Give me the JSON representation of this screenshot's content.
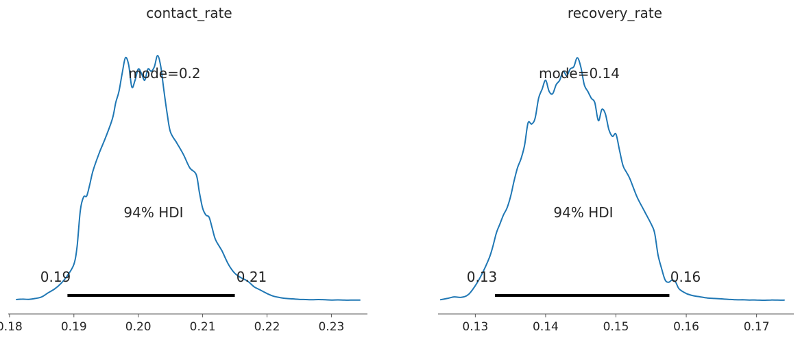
{
  "chart_data": [
    {
      "type": "line",
      "title": "contact_rate",
      "xlabel": "",
      "ylabel": "",
      "xlim": [
        0.1798,
        0.2356
      ],
      "xticks": [
        0.18,
        0.19,
        0.2,
        0.21,
        0.22,
        0.23
      ],
      "xtick_labels": [
        "0.18",
        "0.19",
        "0.20",
        "0.21",
        "0.22",
        "0.23"
      ],
      "line_color": "#1f77b4",
      "x": [
        0.181,
        0.182,
        0.183,
        0.184,
        0.185,
        0.186,
        0.187,
        0.188,
        0.189,
        0.19,
        0.1905,
        0.191,
        0.1915,
        0.192,
        0.1925,
        0.193,
        0.194,
        0.195,
        0.196,
        0.1965,
        0.197,
        0.1975,
        0.198,
        0.1985,
        0.199,
        0.1995,
        0.2,
        0.2005,
        0.201,
        0.2015,
        0.202,
        0.2025,
        0.203,
        0.2035,
        0.204,
        0.2045,
        0.205,
        0.206,
        0.207,
        0.208,
        0.209,
        0.2095,
        0.21,
        0.2105,
        0.211,
        0.2115,
        0.212,
        0.213,
        0.214,
        0.215,
        0.216,
        0.217,
        0.218,
        0.219,
        0.22,
        0.221,
        0.222,
        0.223,
        0.224,
        0.225,
        0.226,
        0.227,
        0.228,
        0.229,
        0.23,
        0.231,
        0.232,
        0.233,
        0.2345
      ],
      "values": [
        0.3,
        0.5,
        0.4,
        0.8,
        1.5,
        3.3,
        5.0,
        7.5,
        11.0,
        16.0,
        24.0,
        40.0,
        46.0,
        46.5,
        52.0,
        58.0,
        66.0,
        73.0,
        81.0,
        88.0,
        93.0,
        101.0,
        108.0,
        105.0,
        95.0,
        98.0,
        103.0,
        101.0,
        98.0,
        103.0,
        102.0,
        104.0,
        109.0,
        104.0,
        93.0,
        83.0,
        75.0,
        70.0,
        65.0,
        59.0,
        56.0,
        48.0,
        41.0,
        38.0,
        37.0,
        32.0,
        27.0,
        22.0,
        16.0,
        12.0,
        10.0,
        8.5,
        6.0,
        4.5,
        3.0,
        1.8,
        1.2,
        0.8,
        0.6,
        0.4,
        0.3,
        0.2,
        0.3,
        0.2,
        0.1,
        0.15,
        0.05,
        0.05,
        0.05
      ],
      "ylim": [
        0,
        120
      ],
      "annotations": {
        "mode_label": "mode=0.2",
        "hdi_label": "94% HDI",
        "hdi_low": 0.189,
        "hdi_high": 0.215,
        "hdi_low_label": "0.19",
        "hdi_high_label": "0.21"
      }
    },
    {
      "type": "line",
      "title": "recovery_rate",
      "xlabel": "",
      "ylabel": "",
      "xlim": [
        0.1247,
        0.1753
      ],
      "xticks": [
        0.13,
        0.14,
        0.15,
        0.16,
        0.17
      ],
      "xtick_labels": [
        "0.13",
        "0.14",
        "0.15",
        "0.16",
        "0.17"
      ],
      "line_color": "#1f77b4",
      "x": [
        0.125,
        0.126,
        0.127,
        0.128,
        0.129,
        0.13,
        0.131,
        0.132,
        0.1325,
        0.133,
        0.1335,
        0.134,
        0.1345,
        0.135,
        0.1355,
        0.136,
        0.1365,
        0.137,
        0.1375,
        0.138,
        0.1385,
        0.139,
        0.1395,
        0.14,
        0.1405,
        0.141,
        0.1415,
        0.142,
        0.1425,
        0.143,
        0.1435,
        0.144,
        0.1445,
        0.145,
        0.1455,
        0.146,
        0.1465,
        0.147,
        0.1475,
        0.148,
        0.1485,
        0.149,
        0.1495,
        0.15,
        0.1505,
        0.151,
        0.1515,
        0.152,
        0.153,
        0.154,
        0.155,
        0.1555,
        0.156,
        0.1565,
        0.157,
        0.1575,
        0.158,
        0.1585,
        0.159,
        0.16,
        0.161,
        0.162,
        0.163,
        0.164,
        0.165,
        0.166,
        0.167,
        0.168,
        0.169,
        0.17,
        0.171,
        0.172,
        0.173,
        0.174
      ],
      "values": [
        0.2,
        0.8,
        1.5,
        1.3,
        2.5,
        6.5,
        12.0,
        19.0,
        24.0,
        30.0,
        34.0,
        38.0,
        41.0,
        46.0,
        53.0,
        59.0,
        63.0,
        69.0,
        79.0,
        78.5,
        81.0,
        90.0,
        94.0,
        98.0,
        93.0,
        92.0,
        96.0,
        98.0,
        102.0,
        100.0,
        103.0,
        104.0,
        108.0,
        104.0,
        96.0,
        93.0,
        90.0,
        88.0,
        80.0,
        85.0,
        83.0,
        76.0,
        73.0,
        74.0,
        67.0,
        60.0,
        57.0,
        54.0,
        46.0,
        40.0,
        34.0,
        30.0,
        20.0,
        14.0,
        9.0,
        8.0,
        9.0,
        8.0,
        5.0,
        3.0,
        2.0,
        1.5,
        1.0,
        0.8,
        0.6,
        0.4,
        0.2,
        0.2,
        0.1,
        0.1,
        0.0,
        0.1,
        0.05,
        0.05
      ],
      "ylim": [
        0,
        120
      ],
      "annotations": {
        "mode_label": "mode=0.14",
        "hdi_label": "94% HDI",
        "hdi_low": 0.1328,
        "hdi_high": 0.1576,
        "hdi_low_label": "0.13",
        "hdi_high_label": "0.16"
      }
    }
  ]
}
